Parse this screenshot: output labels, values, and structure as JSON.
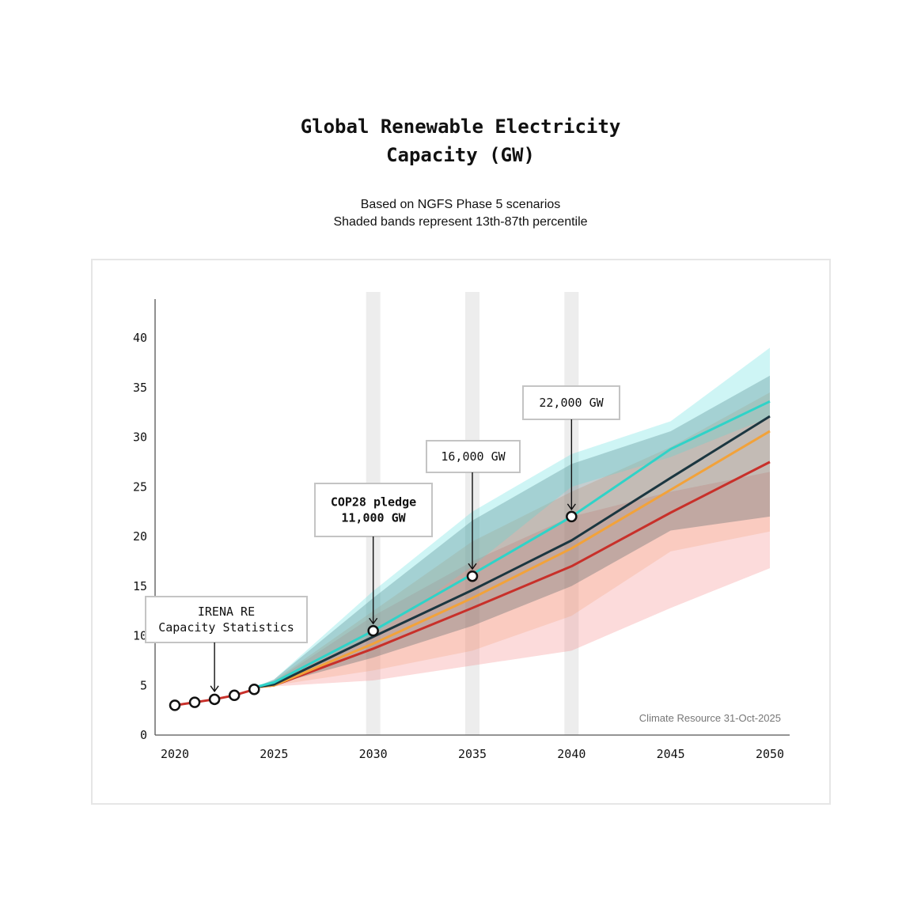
{
  "title_lines": [
    "Global Renewable Electricity",
    "Capacity (GW)"
  ],
  "subtitle_lines": [
    "Based on NGFS Phase 5 scenarios",
    "Shaded bands represent 13th-87th percentile"
  ],
  "credit": "Climate Resource 31-Oct-2025",
  "chart_data": {
    "type": "line",
    "title": "Global Renewable Electricity Capacity (GW)",
    "subtitle": "Based on NGFS Phase 5 scenarios; Shaded bands represent 13th-87th percentile",
    "xlim": [
      2019,
      2051
    ],
    "ylim": [
      0,
      44
    ],
    "x_ticks": [
      "2020",
      "2025",
      "2030",
      "2035",
      "2040",
      "2045",
      "2050"
    ],
    "y_ticks": [
      "0",
      "5",
      "10",
      "15",
      "20",
      "25",
      "30",
      "35",
      "40"
    ],
    "highlight_years": [
      2030,
      2035,
      2040
    ],
    "x": [
      2024,
      2025,
      2030,
      2035,
      2040,
      2045,
      2050
    ],
    "series": [
      {
        "color": "#2fd3c8",
        "band_color": "#4fdcdc",
        "values": [
          4.8,
          5.3,
          10.5,
          16.2,
          22.0,
          28.8,
          33.6
        ],
        "lower": [
          4.8,
          5.4,
          10.0,
          17.0,
          25.0,
          28.0,
          32.0
        ],
        "upper": [
          4.8,
          5.6,
          14.5,
          22.5,
          28.3,
          31.6,
          39.0
        ]
      },
      {
        "color": "#1b3640",
        "band_color": "#2f4f57",
        "values": [
          4.8,
          5.1,
          9.9,
          14.6,
          19.6,
          25.9,
          32.1
        ],
        "lower": [
          4.8,
          5.1,
          7.8,
          11.0,
          15.0,
          20.6,
          22.0
        ],
        "upper": [
          4.8,
          5.6,
          13.8,
          21.6,
          27.3,
          30.6,
          36.2
        ]
      },
      {
        "color": "#f2a23a",
        "band_color": "#f3a07a",
        "values": [
          4.8,
          5.0,
          9.2,
          13.8,
          18.8,
          24.7,
          30.6
        ],
        "lower": [
          4.8,
          5.0,
          6.5,
          8.5,
          12.0,
          18.5,
          20.5
        ],
        "upper": [
          4.8,
          5.5,
          12.5,
          19.5,
          24.5,
          29.0,
          34.5
        ]
      },
      {
        "color": "#c8302a",
        "band_color": "#f47f7f",
        "values": [
          4.8,
          5.0,
          8.7,
          12.8,
          17.0,
          22.4,
          27.5
        ],
        "lower": [
          4.8,
          4.9,
          5.5,
          7.0,
          8.5,
          12.8,
          16.8
        ],
        "upper": [
          4.8,
          5.4,
          12.0,
          17.5,
          22.0,
          24.5,
          26.5
        ]
      }
    ],
    "historical": {
      "x": [
        2020,
        2021,
        2022,
        2023,
        2024
      ],
      "values": [
        3.0,
        3.3,
        3.6,
        4.0,
        4.6
      ]
    },
    "annotations": [
      {
        "lines": [
          "IRENA RE",
          "Capacity Statistics"
        ],
        "x": 2022,
        "y": 3.6,
        "bold": false
      },
      {
        "lines": [
          "COP28 pledge",
          "11,000 GW"
        ],
        "x": 2030,
        "y": 10.5,
        "bold": true
      },
      {
        "lines": [
          "16,000 GW"
        ],
        "x": 2035,
        "y": 16.0,
        "bold": false
      },
      {
        "lines": [
          "22,000 GW"
        ],
        "x": 2040,
        "y": 22.0,
        "bold": false
      }
    ]
  }
}
